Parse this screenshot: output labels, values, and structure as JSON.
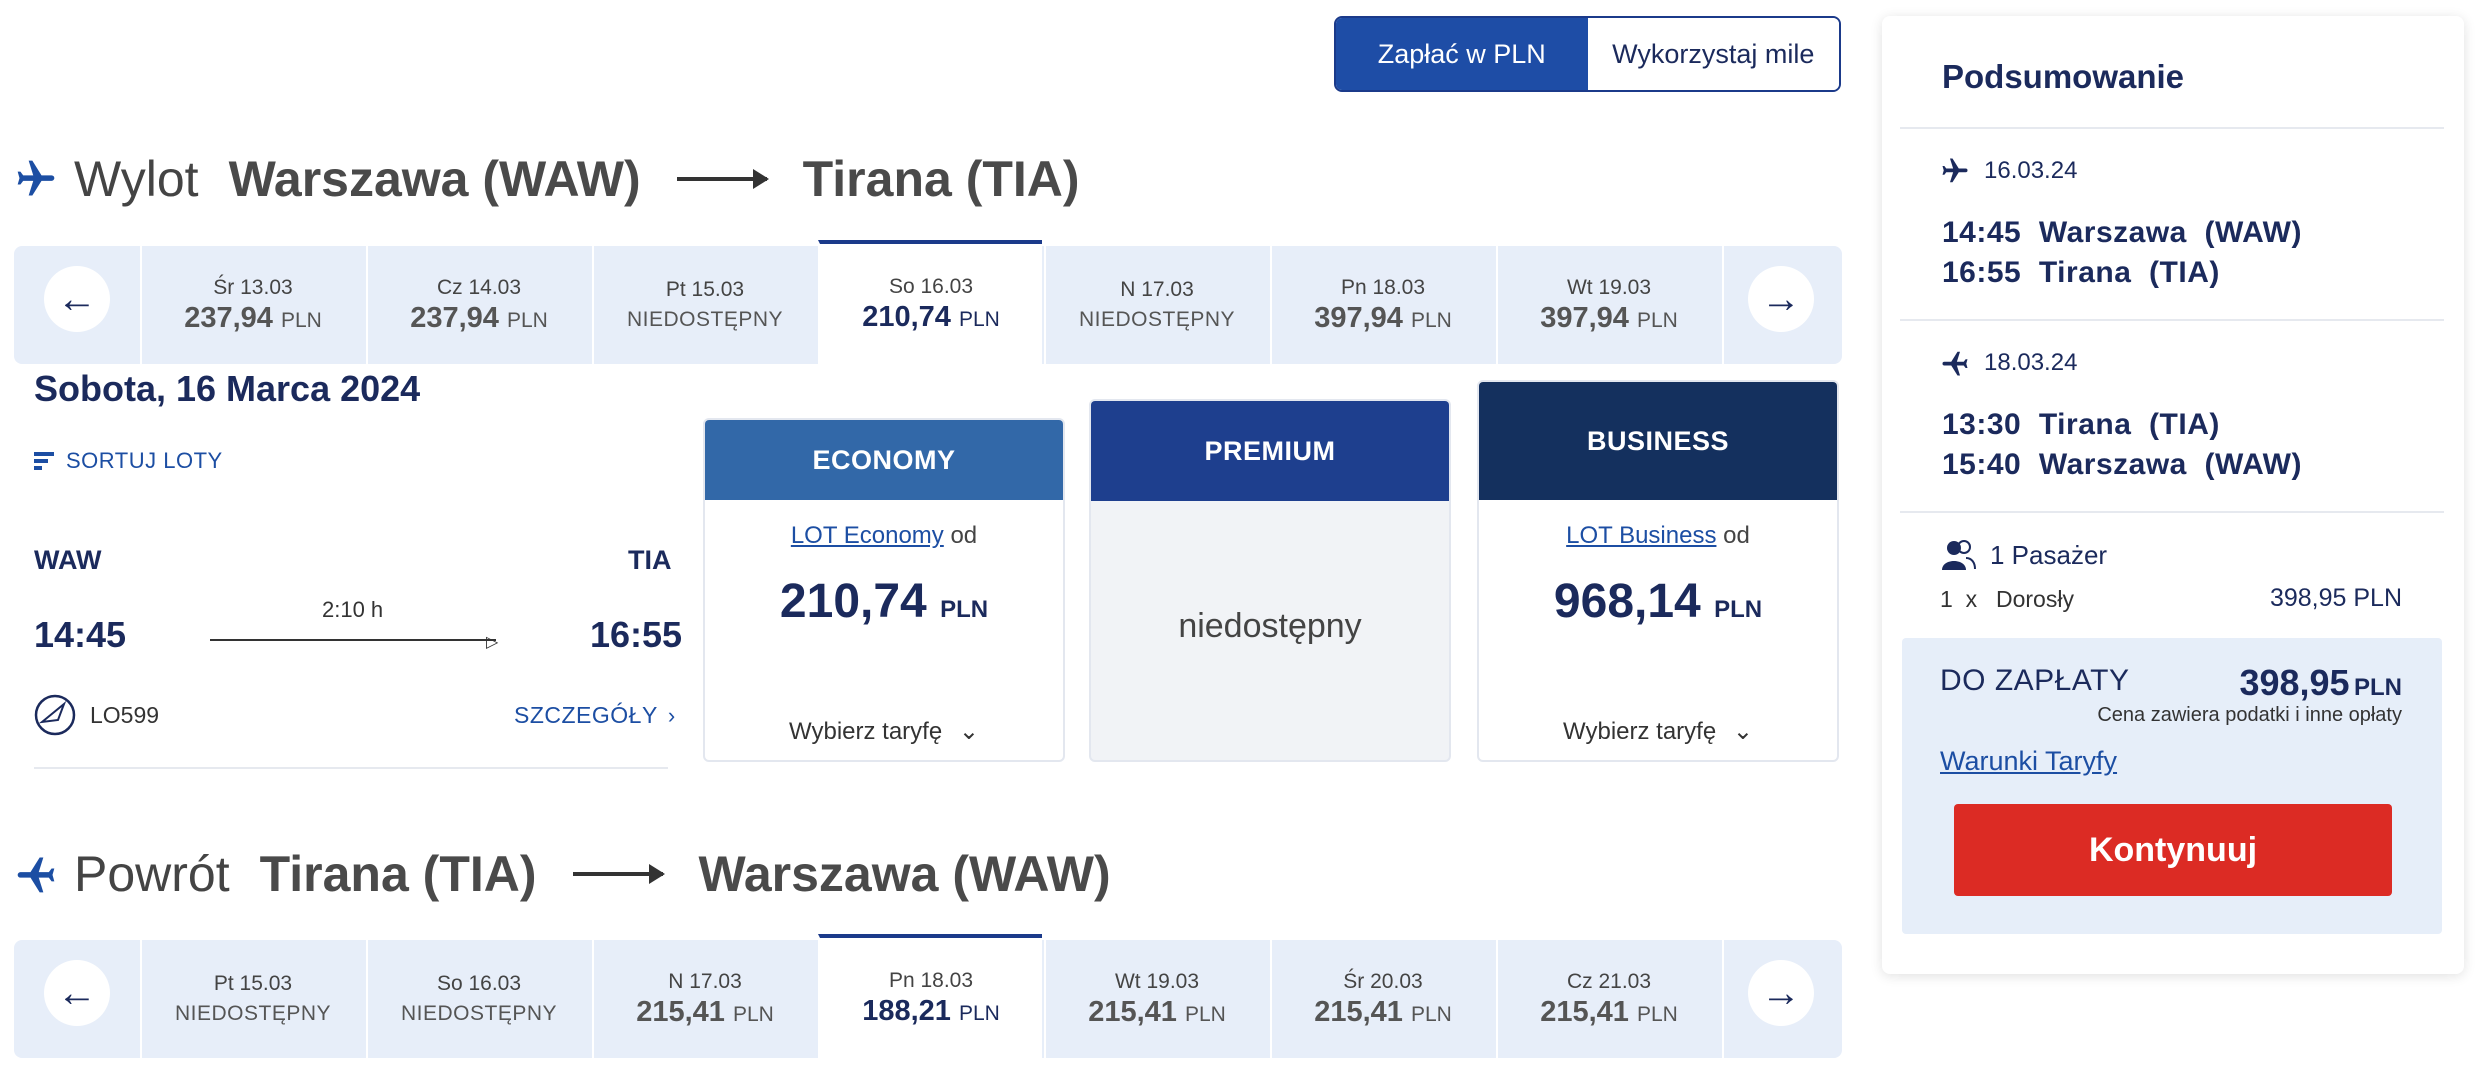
{
  "currency_toggle": {
    "pln": "Zapłać w PLN",
    "miles": "Wykorzystaj mile"
  },
  "outbound": {
    "label": "Wylot",
    "from": "Warszawa (WAW)",
    "to": "Tirana (TIA)",
    "dates": [
      {
        "day": "Śr 13.03",
        "price": "237,94",
        "currency": "PLN",
        "available": true
      },
      {
        "day": "Cz 14.03",
        "price": "237,94",
        "currency": "PLN",
        "available": true
      },
      {
        "day": "Pt 15.03",
        "status": "NIEDOSTĘPNY",
        "available": false
      },
      {
        "day": "So 16.03",
        "price": "210,74",
        "currency": "PLN",
        "available": true,
        "selected": true
      },
      {
        "day": "N 17.03",
        "status": "NIEDOSTĘPNY",
        "available": false
      },
      {
        "day": "Pn 18.03",
        "price": "397,94",
        "currency": "PLN",
        "available": true
      },
      {
        "day": "Wt 19.03",
        "price": "397,94",
        "currency": "PLN",
        "available": true
      }
    ],
    "selected_date_heading": "Sobota, 16 Marca 2024",
    "sort_label": "SORTUJ LOTY",
    "flight": {
      "origin_code": "WAW",
      "dest_code": "TIA",
      "dep_time": "14:45",
      "arr_time": "16:55",
      "duration": "2:10 h",
      "number": "LO599",
      "details": "SZCZEGÓŁY"
    },
    "fares": {
      "economy": {
        "title": "ECONOMY",
        "product": "LOT Economy",
        "from": "od",
        "price": "210,74",
        "currency": "PLN",
        "select": "Wybierz taryfę"
      },
      "premium": {
        "title": "PREMIUM",
        "status": "niedostępny"
      },
      "business": {
        "title": "BUSINESS",
        "product": "LOT Business",
        "from": "od",
        "price": "968,14",
        "currency": "PLN",
        "select": "Wybierz taryfę"
      }
    }
  },
  "return": {
    "label": "Powrót",
    "from": "Tirana (TIA)",
    "to": "Warszawa (WAW)",
    "dates": [
      {
        "day": "Pt 15.03",
        "status": "NIEDOSTĘPNY",
        "available": false
      },
      {
        "day": "So 16.03",
        "status": "NIEDOSTĘPNY",
        "available": false
      },
      {
        "day": "N 17.03",
        "price": "215,41",
        "currency": "PLN",
        "available": true
      },
      {
        "day": "Pn 18.03",
        "price": "188,21",
        "currency": "PLN",
        "available": true,
        "selected": true
      },
      {
        "day": "Wt 19.03",
        "price": "215,41",
        "currency": "PLN",
        "available": true
      },
      {
        "day": "Śr 20.03",
        "price": "215,41",
        "currency": "PLN",
        "available": true
      },
      {
        "day": "Cz 21.03",
        "price": "215,41",
        "currency": "PLN",
        "available": true
      }
    ]
  },
  "summary": {
    "title": "Podsumowanie",
    "out": {
      "date": "16.03.24",
      "dep": "14:45  Warszawa  (WAW)",
      "arr": "16:55  Tirana  (TIA)"
    },
    "ret": {
      "date": "18.03.24",
      "dep": "13:30  Tirana  (TIA)",
      "arr": "15:40  Warszawa  (WAW)"
    },
    "passengers": "1 Pasażer",
    "pax_count": "1  x",
    "pax_type": "Dorosły",
    "pax_price": "398,95 PLN",
    "to_pay_label": "DO ZAPŁATY",
    "total": "398,95",
    "total_currency": "PLN",
    "tax_note": "Cena zawiera podatki i inne opłaty",
    "fare_rules": "Warunki Taryfy",
    "continue": "Kontynuuj"
  }
}
